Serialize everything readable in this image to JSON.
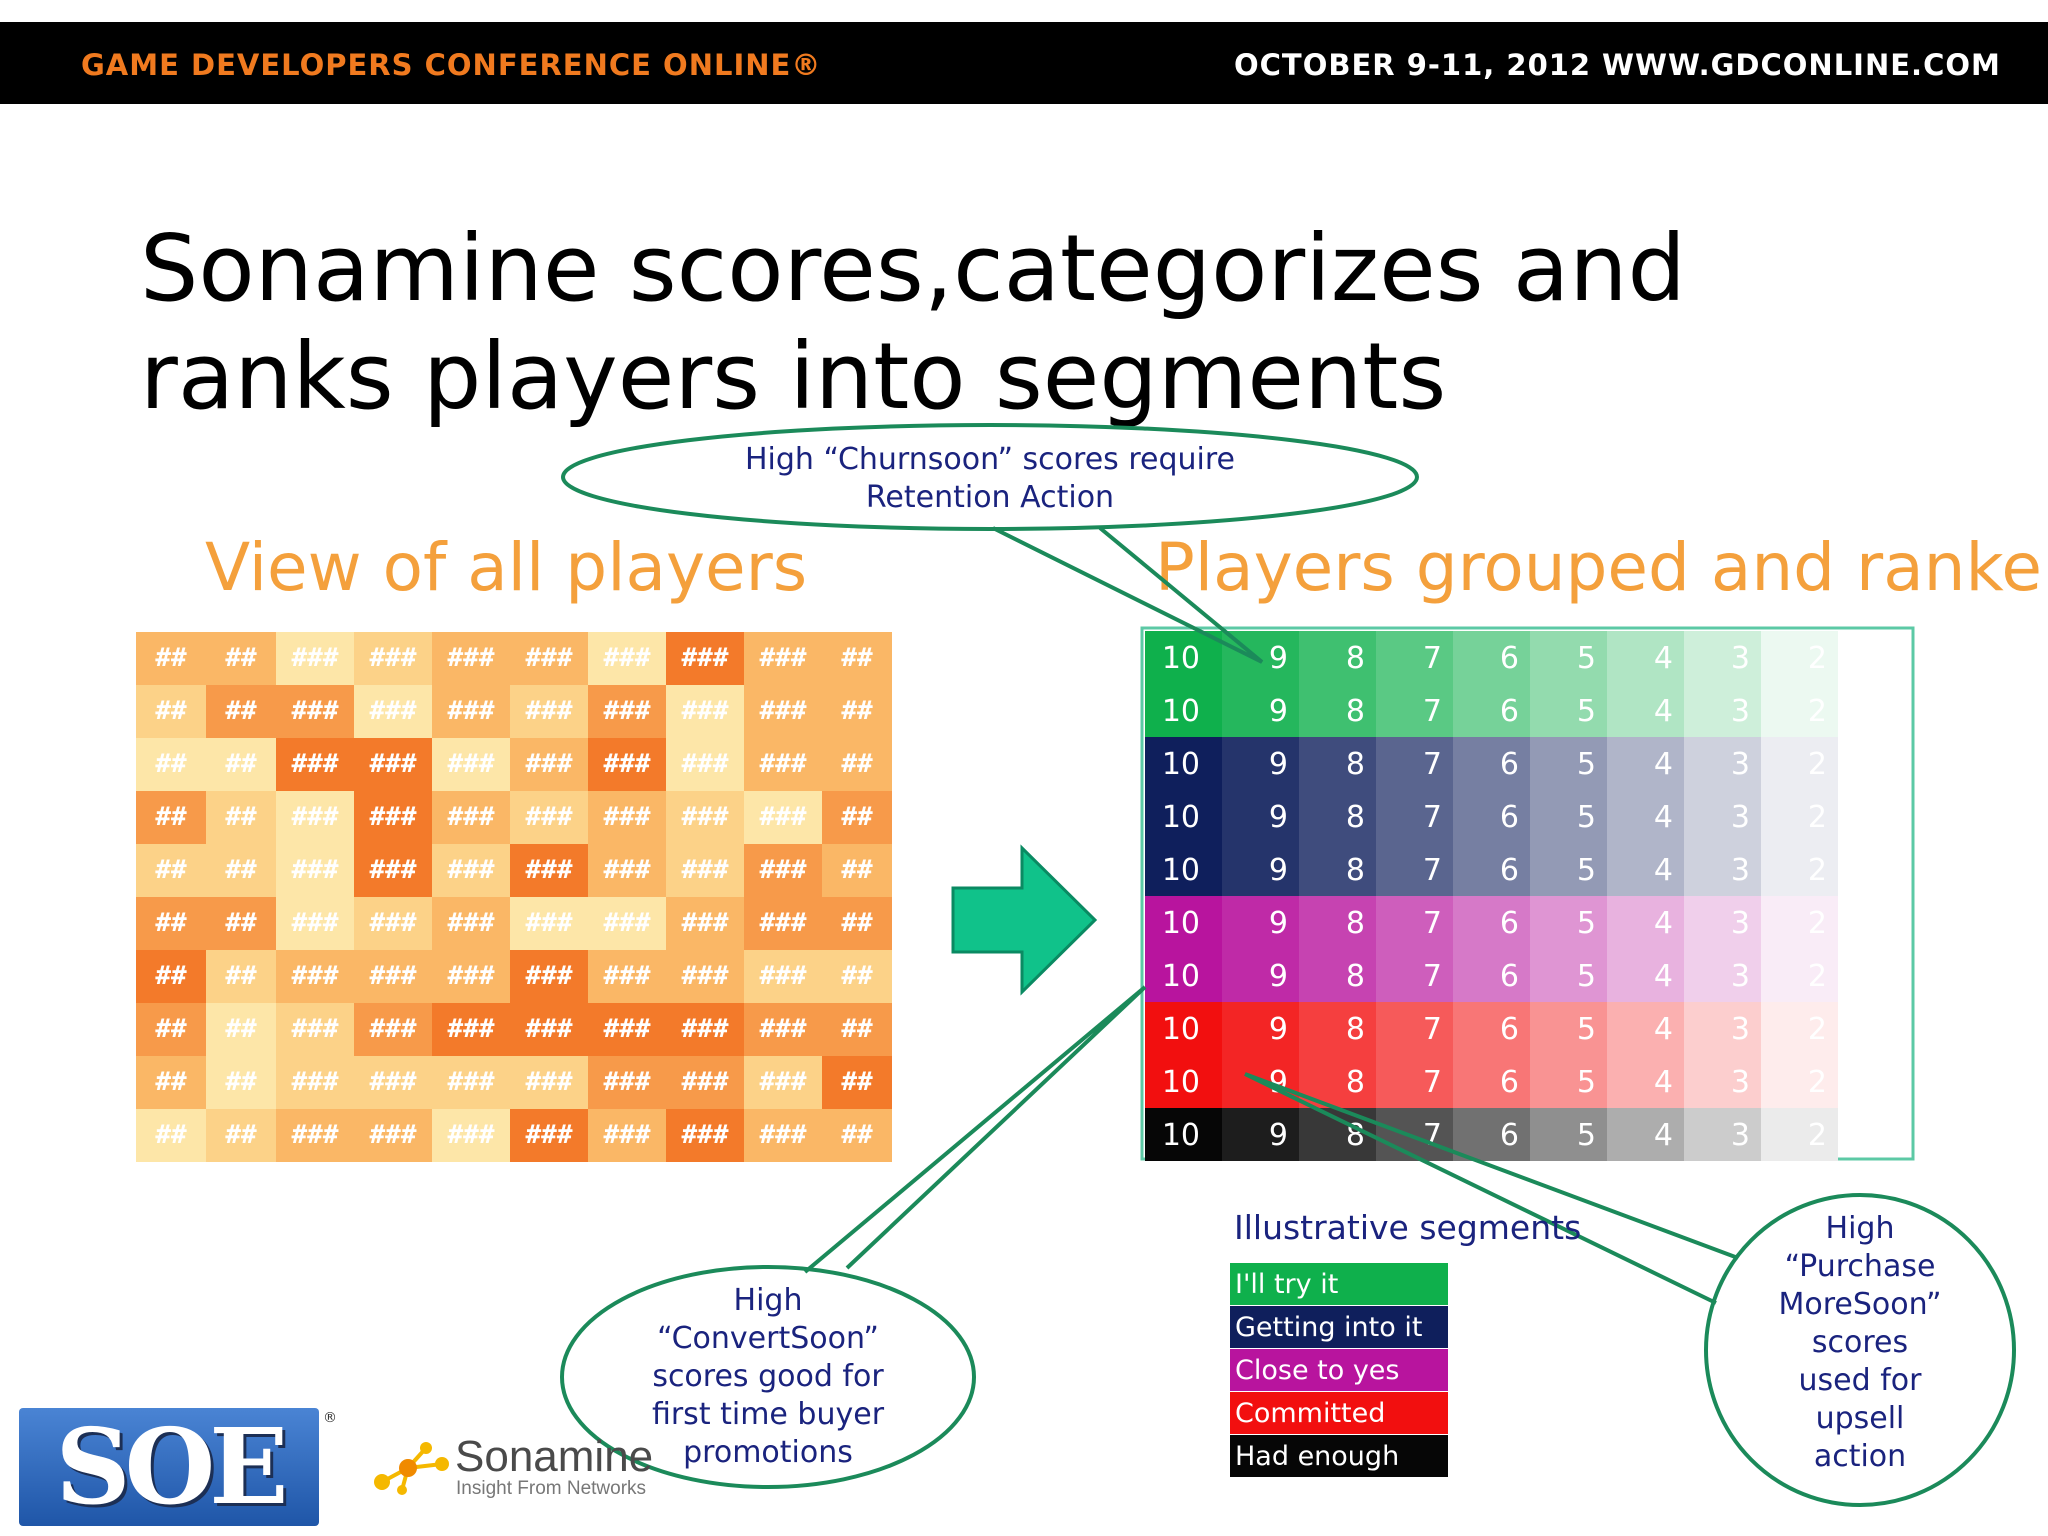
{
  "header": {
    "conference": "GAME DEVELOPERS CONFERENCE ONLINE®",
    "dates": "OCTOBER 9-11, 2012",
    "url": "WWW.GDCONLINE.COM"
  },
  "title": {
    "line1": "Sonamine scores,categorizes and",
    "line2": "ranks players into segments"
  },
  "left_panel": {
    "heading": "View of all players",
    "cell_short": "##",
    "cell_long": "###"
  },
  "right_panel": {
    "heading": "Players grouped and ranke",
    "rank_values": [
      "10",
      "9",
      "8",
      "7",
      "6",
      "5",
      "4",
      "3",
      "2"
    ]
  },
  "callouts": {
    "churn": [
      "High “Churnsoon” scores require",
      "Retention Action"
    ],
    "convert": [
      "High",
      "“ConvertSoon”",
      "scores good for",
      "first time buyer",
      "promotions"
    ],
    "purchase": [
      "High",
      "“Purchase",
      "MoreSoon”",
      "scores",
      "used for",
      "upsell",
      "action"
    ]
  },
  "legend": {
    "title": "Illustrative segments",
    "items": [
      {
        "label": "I'll try it",
        "color": "#0fb04c"
      },
      {
        "label": "Getting into it",
        "color": "#0f1f5c"
      },
      {
        "label": "Close to yes",
        "color": "#b8149e"
      },
      {
        "label": "Committed",
        "color": "#f20f0f"
      },
      {
        "label": "Had enough",
        "color": "#060606"
      }
    ]
  },
  "logos": {
    "soe": "SOE",
    "soe_reg": "®",
    "sonamine_name": "Sonamine",
    "sonamine_tagline": "Insight From Networks"
  },
  "colors": {
    "accent_orange": "#f4a03c",
    "callout_green": "#1b8a5a",
    "arrow_green": "#10c28a"
  }
}
